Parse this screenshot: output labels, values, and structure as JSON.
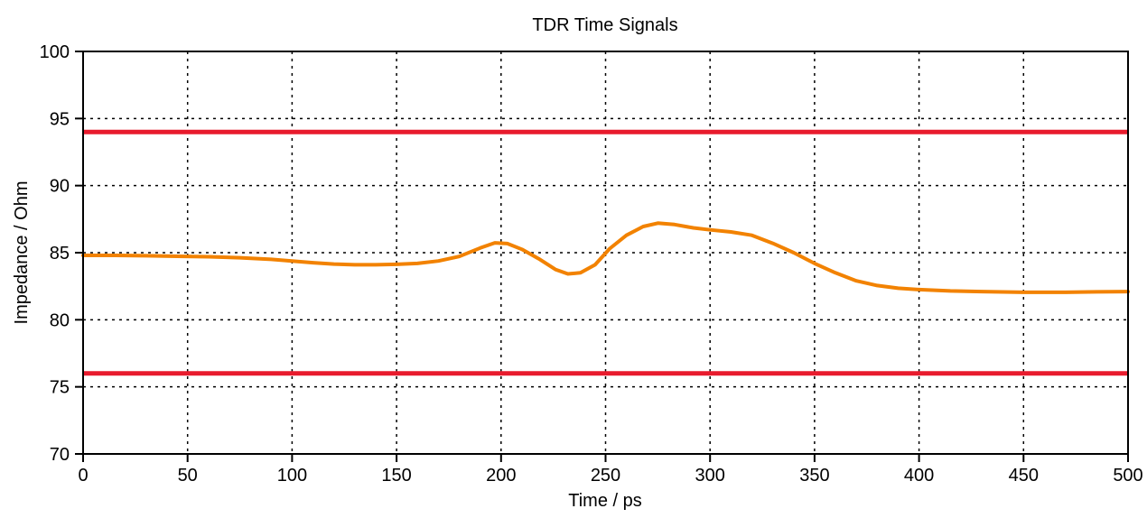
{
  "chart_data": {
    "type": "line",
    "title": "TDR Time Signals",
    "xlabel": "Time / ps",
    "ylabel": "Impedance / Ohm",
    "xlim": [
      0,
      500
    ],
    "ylim": [
      70,
      100
    ],
    "xticks": [
      0,
      50,
      100,
      150,
      200,
      250,
      300,
      350,
      400,
      450,
      500
    ],
    "yticks": [
      70,
      75,
      80,
      85,
      90,
      95,
      100
    ],
    "grid": {
      "style": "dotted",
      "color": "#000000"
    },
    "axis_color": "#000000",
    "background": "#ffffff",
    "legend_position": "none",
    "series": [
      {
        "name": "tdr-impedance-trace",
        "color": "#F28200",
        "stroke_width": 4,
        "points": [
          [
            0,
            84.8
          ],
          [
            15,
            84.8
          ],
          [
            30,
            84.77
          ],
          [
            45,
            84.73
          ],
          [
            60,
            84.7
          ],
          [
            75,
            84.62
          ],
          [
            90,
            84.5
          ],
          [
            100,
            84.38
          ],
          [
            110,
            84.25
          ],
          [
            120,
            84.15
          ],
          [
            130,
            84.1
          ],
          [
            140,
            84.1
          ],
          [
            150,
            84.13
          ],
          [
            160,
            84.2
          ],
          [
            170,
            84.38
          ],
          [
            180,
            84.72
          ],
          [
            190,
            85.35
          ],
          [
            197,
            85.73
          ],
          [
            203,
            85.68
          ],
          [
            210,
            85.25
          ],
          [
            218,
            84.55
          ],
          [
            226,
            83.75
          ],
          [
            232,
            83.42
          ],
          [
            238,
            83.5
          ],
          [
            245,
            84.1
          ],
          [
            252,
            85.3
          ],
          [
            260,
            86.3
          ],
          [
            268,
            86.95
          ],
          [
            275,
            87.2
          ],
          [
            283,
            87.1
          ],
          [
            292,
            86.85
          ],
          [
            300,
            86.7
          ],
          [
            310,
            86.55
          ],
          [
            320,
            86.3
          ],
          [
            330,
            85.7
          ],
          [
            340,
            85.0
          ],
          [
            350,
            84.2
          ],
          [
            360,
            83.5
          ],
          [
            370,
            82.9
          ],
          [
            380,
            82.55
          ],
          [
            390,
            82.35
          ],
          [
            400,
            82.25
          ],
          [
            415,
            82.15
          ],
          [
            430,
            82.1
          ],
          [
            450,
            82.05
          ],
          [
            470,
            82.05
          ],
          [
            485,
            82.08
          ],
          [
            500,
            82.1
          ]
        ]
      }
    ],
    "limit_lines": [
      {
        "name": "upper-limit-line",
        "value": 94,
        "color": "#E81B2D",
        "stroke_width": 5
      },
      {
        "name": "lower-limit-line",
        "value": 76,
        "color": "#E81B2D",
        "stroke_width": 5
      }
    ]
  }
}
